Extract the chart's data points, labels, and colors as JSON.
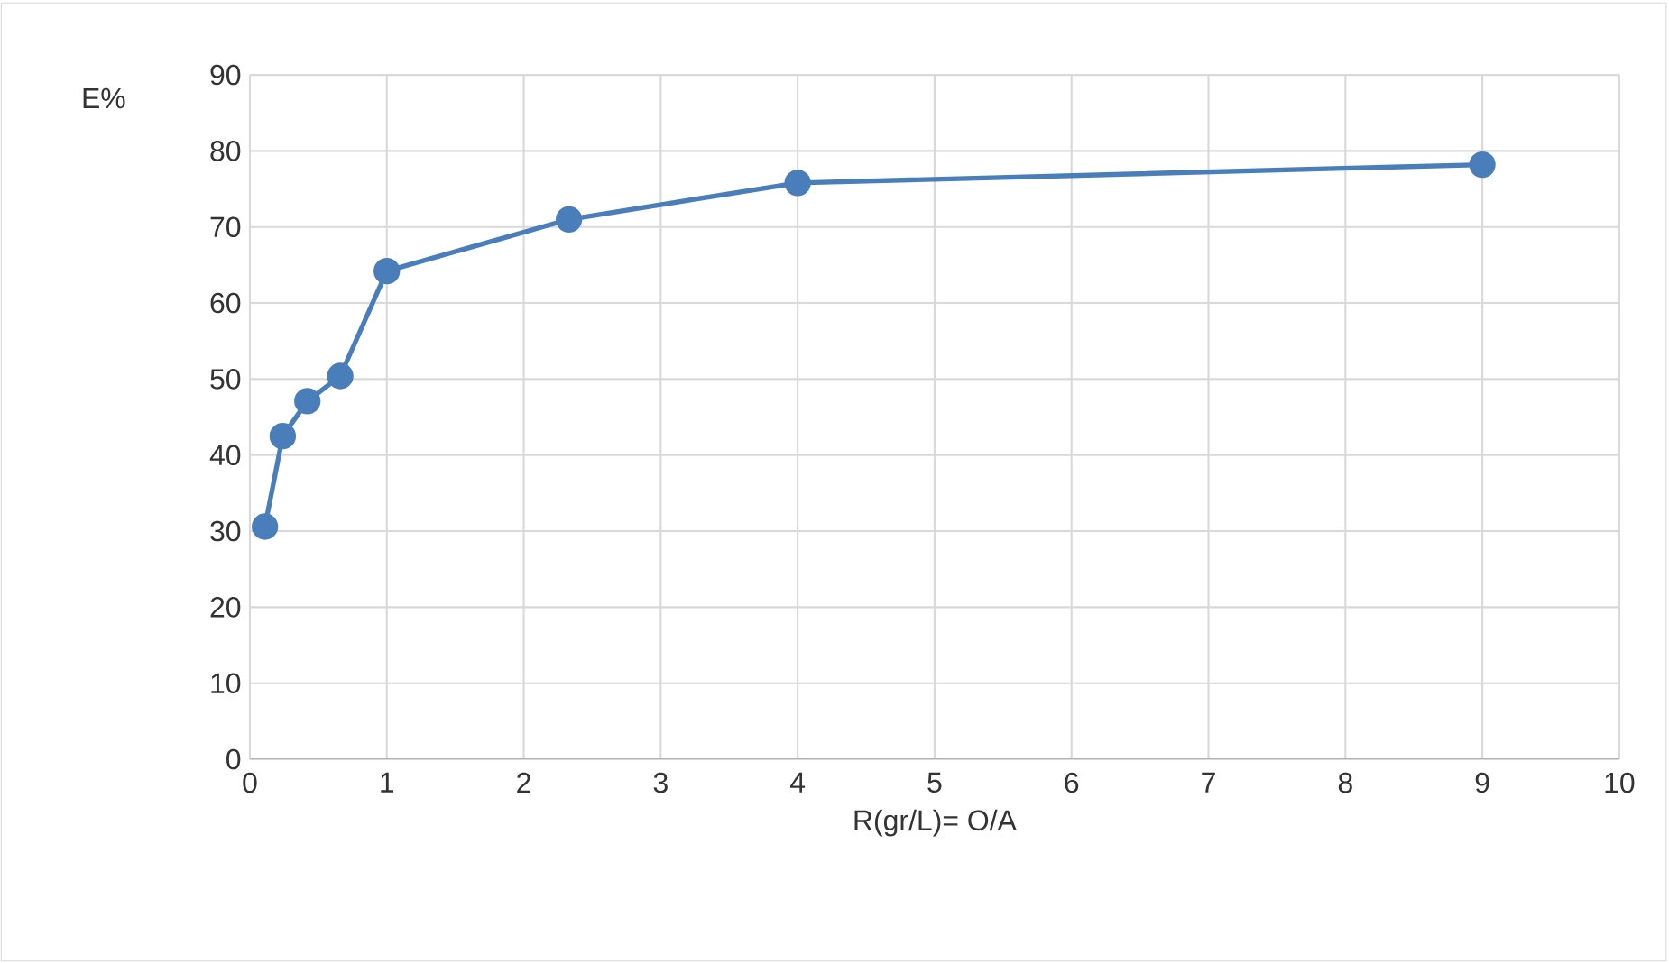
{
  "chart_data": {
    "type": "line",
    "xlabel": "R(gr/L)= O/A",
    "ylabel": "E%",
    "x": [
      0.11,
      0.24,
      0.42,
      0.66,
      1,
      2.33,
      4,
      9
    ],
    "series": [
      {
        "color": "#4a7ebb",
        "values": [
          30.6,
          42.5,
          47.1,
          50.4,
          64.2,
          71,
          75.8,
          78.2
        ]
      }
    ],
    "xlim": [
      0,
      10
    ],
    "xticks": [
      0,
      1,
      2,
      3,
      4,
      5,
      6,
      7,
      8,
      9,
      10
    ],
    "ylim": [
      0,
      90
    ],
    "yticks": [
      0,
      10,
      20,
      30,
      40,
      50,
      60,
      70,
      80,
      90
    ],
    "grid": true,
    "marker": "circle",
    "line_style": "solid"
  }
}
